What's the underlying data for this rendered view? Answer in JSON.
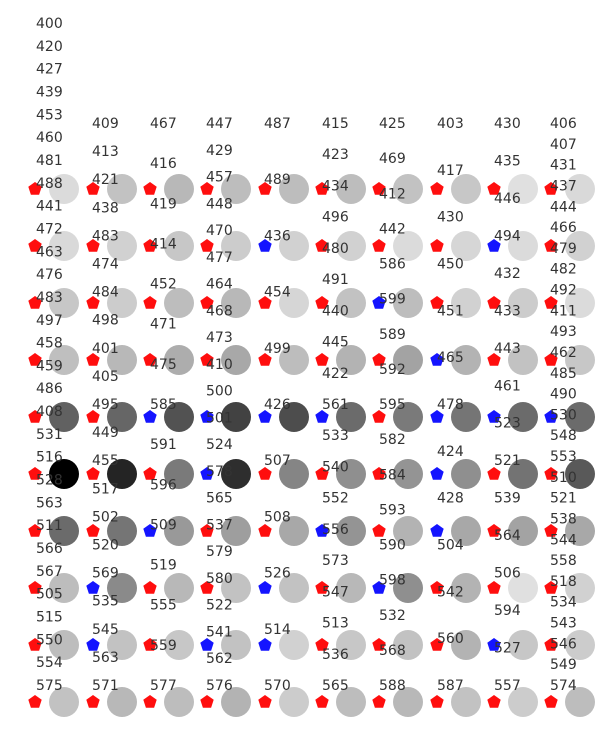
{
  "colors": {
    "red_marker": "#ff0e0e",
    "blue_marker": "#1414ff",
    "label": "#333333",
    "background": "#ffffff"
  },
  "marker_shape": "pentagon",
  "columns": [
    {
      "labels": [
        "400",
        "420",
        "427",
        "439",
        "453",
        "460",
        "481",
        "488",
        "441",
        "472",
        "463",
        "476",
        "483",
        "497",
        "458",
        "459",
        "486",
        "408",
        "531",
        "516",
        "528",
        "563",
        "511",
        "566",
        "567",
        "505",
        "515",
        "550",
        "554",
        "575"
      ]
    },
    {
      "labels": [
        "409",
        "413",
        "421",
        "438",
        "483",
        "474",
        "484",
        "498",
        "401",
        "405",
        "495",
        "449",
        "455",
        "517",
        "502",
        "520",
        "569",
        "535",
        "545",
        "563",
        "571"
      ]
    },
    {
      "labels": [
        "467",
        "416",
        "419",
        "414",
        "452",
        "471",
        "475",
        "585",
        "591",
        "596",
        "509",
        "519",
        "555",
        "559",
        "577"
      ]
    },
    {
      "labels": [
        "447",
        "429",
        "457",
        "448",
        "470",
        "477",
        "464",
        "468",
        "473",
        "410",
        "500",
        "501",
        "524",
        "578",
        "565",
        "537",
        "579",
        "580",
        "522",
        "541",
        "562",
        "576"
      ]
    },
    {
      "labels": [
        "487",
        "489",
        "436",
        "454",
        "499",
        "426",
        "507",
        "508",
        "526",
        "514",
        "570"
      ]
    },
    {
      "labels": [
        "415",
        "423",
        "434",
        "496",
        "480",
        "491",
        "440",
        "445",
        "422",
        "561",
        "533",
        "540",
        "552",
        "556",
        "573",
        "547",
        "513",
        "536",
        "565"
      ]
    },
    {
      "labels": [
        "425",
        "469",
        "412",
        "442",
        "586",
        "599",
        "589",
        "592",
        "595",
        "582",
        "584",
        "593",
        "590",
        "598",
        "532",
        "568",
        "588"
      ]
    },
    {
      "labels": [
        "403",
        "417",
        "430",
        "450",
        "451",
        "465",
        "478",
        "424",
        "428",
        "504",
        "542",
        "560",
        "587"
      ]
    },
    {
      "labels": [
        "430",
        "435",
        "446",
        "494",
        "432",
        "433",
        "443",
        "461",
        "523",
        "521",
        "539",
        "564",
        "506",
        "594",
        "527",
        "557"
      ]
    },
    {
      "labels": [
        "406",
        "407",
        "431",
        "437",
        "444",
        "466",
        "479",
        "482",
        "492",
        "411",
        "493",
        "462",
        "485",
        "490",
        "530",
        "548",
        "553",
        "510",
        "521",
        "538",
        "544",
        "558",
        "518",
        "534",
        "543",
        "546",
        "549",
        "574"
      ]
    }
  ],
  "grid": [
    {
      "markers": [
        "red",
        "red",
        "red",
        "red",
        "red",
        "red",
        "red",
        "red",
        "red",
        "red"
      ],
      "shades": [
        0.86,
        0.76,
        0.72,
        0.74,
        0.74,
        0.74,
        0.76,
        0.78,
        0.88,
        0.85
      ]
    },
    {
      "markers": [
        "red",
        "red",
        "red",
        "red",
        "blue",
        "red",
        "red",
        "red",
        "blue",
        "red"
      ],
      "shades": [
        0.85,
        0.82,
        0.78,
        0.8,
        0.82,
        0.82,
        0.86,
        0.84,
        0.86,
        0.82
      ]
    },
    {
      "markers": [
        "red",
        "red",
        "red",
        "red",
        "red",
        "red",
        "blue",
        "red",
        "red",
        "red"
      ],
      "shades": [
        0.78,
        0.8,
        0.74,
        0.72,
        0.84,
        0.76,
        0.74,
        0.82,
        0.8,
        0.86
      ]
    },
    {
      "markers": [
        "red",
        "red",
        "red",
        "red",
        "red",
        "red",
        "red",
        "blue",
        "red",
        "red"
      ],
      "shades": [
        0.75,
        0.72,
        0.68,
        0.66,
        0.74,
        0.7,
        0.64,
        0.7,
        0.76,
        0.78
      ]
    },
    {
      "markers": [
        "red",
        "red",
        "blue",
        "blue",
        "blue",
        "blue",
        "red",
        "blue",
        "blue",
        "blue"
      ],
      "shades": [
        0.38,
        0.4,
        0.32,
        0.26,
        0.3,
        0.42,
        0.48,
        0.46,
        0.42,
        0.42
      ]
    },
    {
      "markers": [
        "red",
        "red",
        "red",
        "blue",
        "red",
        "red",
        "red",
        "blue",
        "red",
        "red"
      ],
      "shades": [
        0.0,
        0.14,
        0.48,
        0.18,
        0.52,
        0.56,
        0.58,
        0.56,
        0.45,
        0.35
      ]
    },
    {
      "markers": [
        "red",
        "red",
        "blue",
        "red",
        "red",
        "blue",
        "red",
        "blue",
        "red",
        "red"
      ],
      "shades": [
        0.42,
        0.46,
        0.6,
        0.62,
        0.66,
        0.58,
        0.7,
        0.66,
        0.64,
        0.66
      ]
    },
    {
      "markers": [
        "red",
        "blue",
        "red",
        "red",
        "blue",
        "red",
        "blue",
        "red",
        "red",
        "red"
      ],
      "shades": [
        0.74,
        0.54,
        0.72,
        0.76,
        0.76,
        0.72,
        0.56,
        0.7,
        0.88,
        0.82
      ]
    },
    {
      "markers": [
        "red",
        "blue",
        "red",
        "blue",
        "blue",
        "red",
        "red",
        "red",
        "blue",
        "red"
      ],
      "shades": [
        0.74,
        0.76,
        0.78,
        0.76,
        0.82,
        0.78,
        0.76,
        0.7,
        0.78,
        0.8
      ]
    },
    {
      "markers": [
        "red",
        "red",
        "red",
        "red",
        "red",
        "red",
        "red",
        "red",
        "red",
        "red"
      ],
      "shades": [
        0.76,
        0.72,
        0.74,
        0.7,
        0.8,
        0.74,
        0.72,
        0.76,
        0.8,
        0.74
      ]
    }
  ]
}
